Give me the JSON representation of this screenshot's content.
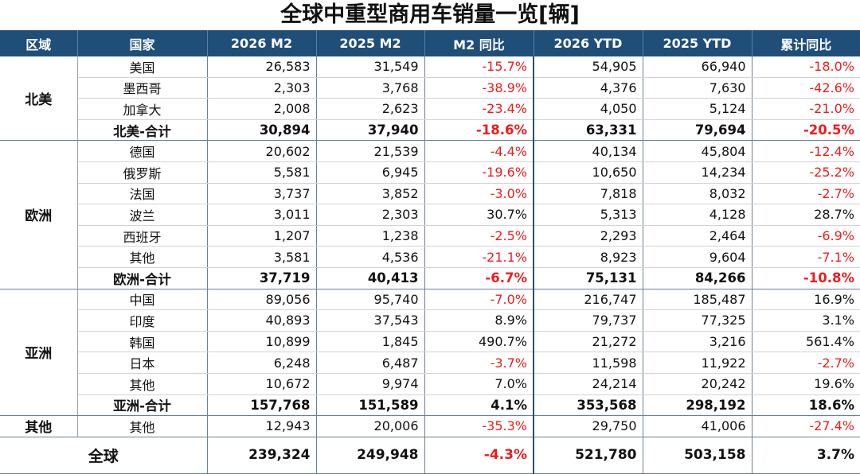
{
  "title": "全球中重型商用车销量一览[辆]",
  "headers": [
    "区域",
    "国家",
    "2026 M2",
    "2025 M2",
    "M2 同比",
    "2026 YTD",
    "2025 YTD",
    "累计同比"
  ],
  "groups": [
    {
      "region": "北美",
      "rows": [
        {
          "country": "美国",
          "m2_2026": "26,583",
          "m2_2025": "31,549",
          "m2_yoy": "-15.7%",
          "ytd_2026": "54,905",
          "ytd_2025": "66,940",
          "ytd_yoy": "-18.0%"
        },
        {
          "country": "墨西哥",
          "m2_2026": "2,303",
          "m2_2025": "3,768",
          "m2_yoy": "-38.9%",
          "ytd_2026": "4,376",
          "ytd_2025": "7,630",
          "ytd_yoy": "-42.6%"
        },
        {
          "country": "加拿大",
          "m2_2026": "2,008",
          "m2_2025": "2,623",
          "m2_yoy": "-23.4%",
          "ytd_2026": "4,050",
          "ytd_2025": "5,124",
          "ytd_yoy": "-21.0%"
        }
      ],
      "total": {
        "country": "北美-合计",
        "m2_2026": "30,894",
        "m2_2025": "37,940",
        "m2_yoy": "-18.6%",
        "ytd_2026": "63,331",
        "ytd_2025": "79,694",
        "ytd_yoy": "-20.5%"
      }
    },
    {
      "region": "欧洲",
      "rows": [
        {
          "country": "德国",
          "m2_2026": "20,602",
          "m2_2025": "21,539",
          "m2_yoy": "-4.4%",
          "ytd_2026": "40,134",
          "ytd_2025": "45,804",
          "ytd_yoy": "-12.4%"
        },
        {
          "country": "俄罗斯",
          "m2_2026": "5,581",
          "m2_2025": "6,945",
          "m2_yoy": "-19.6%",
          "ytd_2026": "10,650",
          "ytd_2025": "14,234",
          "ytd_yoy": "-25.2%"
        },
        {
          "country": "法国",
          "m2_2026": "3,737",
          "m2_2025": "3,852",
          "m2_yoy": "-3.0%",
          "ytd_2026": "7,818",
          "ytd_2025": "8,032",
          "ytd_yoy": "-2.7%"
        },
        {
          "country": "波兰",
          "m2_2026": "3,011",
          "m2_2025": "2,303",
          "m2_yoy": "30.7%",
          "ytd_2026": "5,313",
          "ytd_2025": "4,128",
          "ytd_yoy": "28.7%"
        },
        {
          "country": "西班牙",
          "m2_2026": "1,207",
          "m2_2025": "1,238",
          "m2_yoy": "-2.5%",
          "ytd_2026": "2,293",
          "ytd_2025": "2,464",
          "ytd_yoy": "-6.9%"
        },
        {
          "country": "其他",
          "m2_2026": "3,581",
          "m2_2025": "4,536",
          "m2_yoy": "-21.1%",
          "ytd_2026": "8,923",
          "ytd_2025": "9,604",
          "ytd_yoy": "-7.1%"
        }
      ],
      "total": {
        "country": "欧洲-合计",
        "m2_2026": "37,719",
        "m2_2025": "40,413",
        "m2_yoy": "-6.7%",
        "ytd_2026": "75,131",
        "ytd_2025": "84,266",
        "ytd_yoy": "-10.8%"
      }
    },
    {
      "region": "亚洲",
      "rows": [
        {
          "country": "中国",
          "m2_2026": "89,056",
          "m2_2025": "95,740",
          "m2_yoy": "-7.0%",
          "ytd_2026": "216,747",
          "ytd_2025": "185,487",
          "ytd_yoy": "16.9%"
        },
        {
          "country": "印度",
          "m2_2026": "40,893",
          "m2_2025": "37,543",
          "m2_yoy": "8.9%",
          "ytd_2026": "79,737",
          "ytd_2025": "77,325",
          "ytd_yoy": "3.1%"
        },
        {
          "country": "韩国",
          "m2_2026": "10,899",
          "m2_2025": "1,845",
          "m2_yoy": "490.7%",
          "ytd_2026": "21,272",
          "ytd_2025": "3,216",
          "ytd_yoy": "561.4%"
        },
        {
          "country": "日本",
          "m2_2026": "6,248",
          "m2_2025": "6,487",
          "m2_yoy": "-3.7%",
          "ytd_2026": "11,598",
          "ytd_2025": "11,922",
          "ytd_yoy": "-2.7%"
        },
        {
          "country": "其他",
          "m2_2026": "10,672",
          "m2_2025": "9,974",
          "m2_yoy": "7.0%",
          "ytd_2026": "24,214",
          "ytd_2025": "20,242",
          "ytd_yoy": "19.6%"
        }
      ],
      "total": {
        "country": "亚洲-合计",
        "m2_2026": "157,768",
        "m2_2025": "151,589",
        "m2_yoy": "4.1%",
        "ytd_2026": "353,568",
        "ytd_2025": "298,192",
        "ytd_yoy": "18.6%"
      }
    },
    {
      "region": "其他",
      "rows": [
        {
          "country": "其他",
          "m2_2026": "12,943",
          "m2_2025": "20,006",
          "m2_yoy": "-35.3%",
          "ytd_2026": "29,750",
          "ytd_2025": "41,006",
          "ytd_yoy": "-27.4%"
        }
      ],
      "total": null
    }
  ],
  "global": {
    "label": "全球",
    "m2_2026": "239,324",
    "m2_2025": "249,948",
    "m2_yoy": "-4.3%",
    "ytd_2026": "521,780",
    "ytd_2025": "503,158",
    "ytd_yoy": "3.7%"
  },
  "colors": {
    "header_bg": "#1f4e79",
    "negative": "#ee1c1c",
    "text": "#111111"
  }
}
